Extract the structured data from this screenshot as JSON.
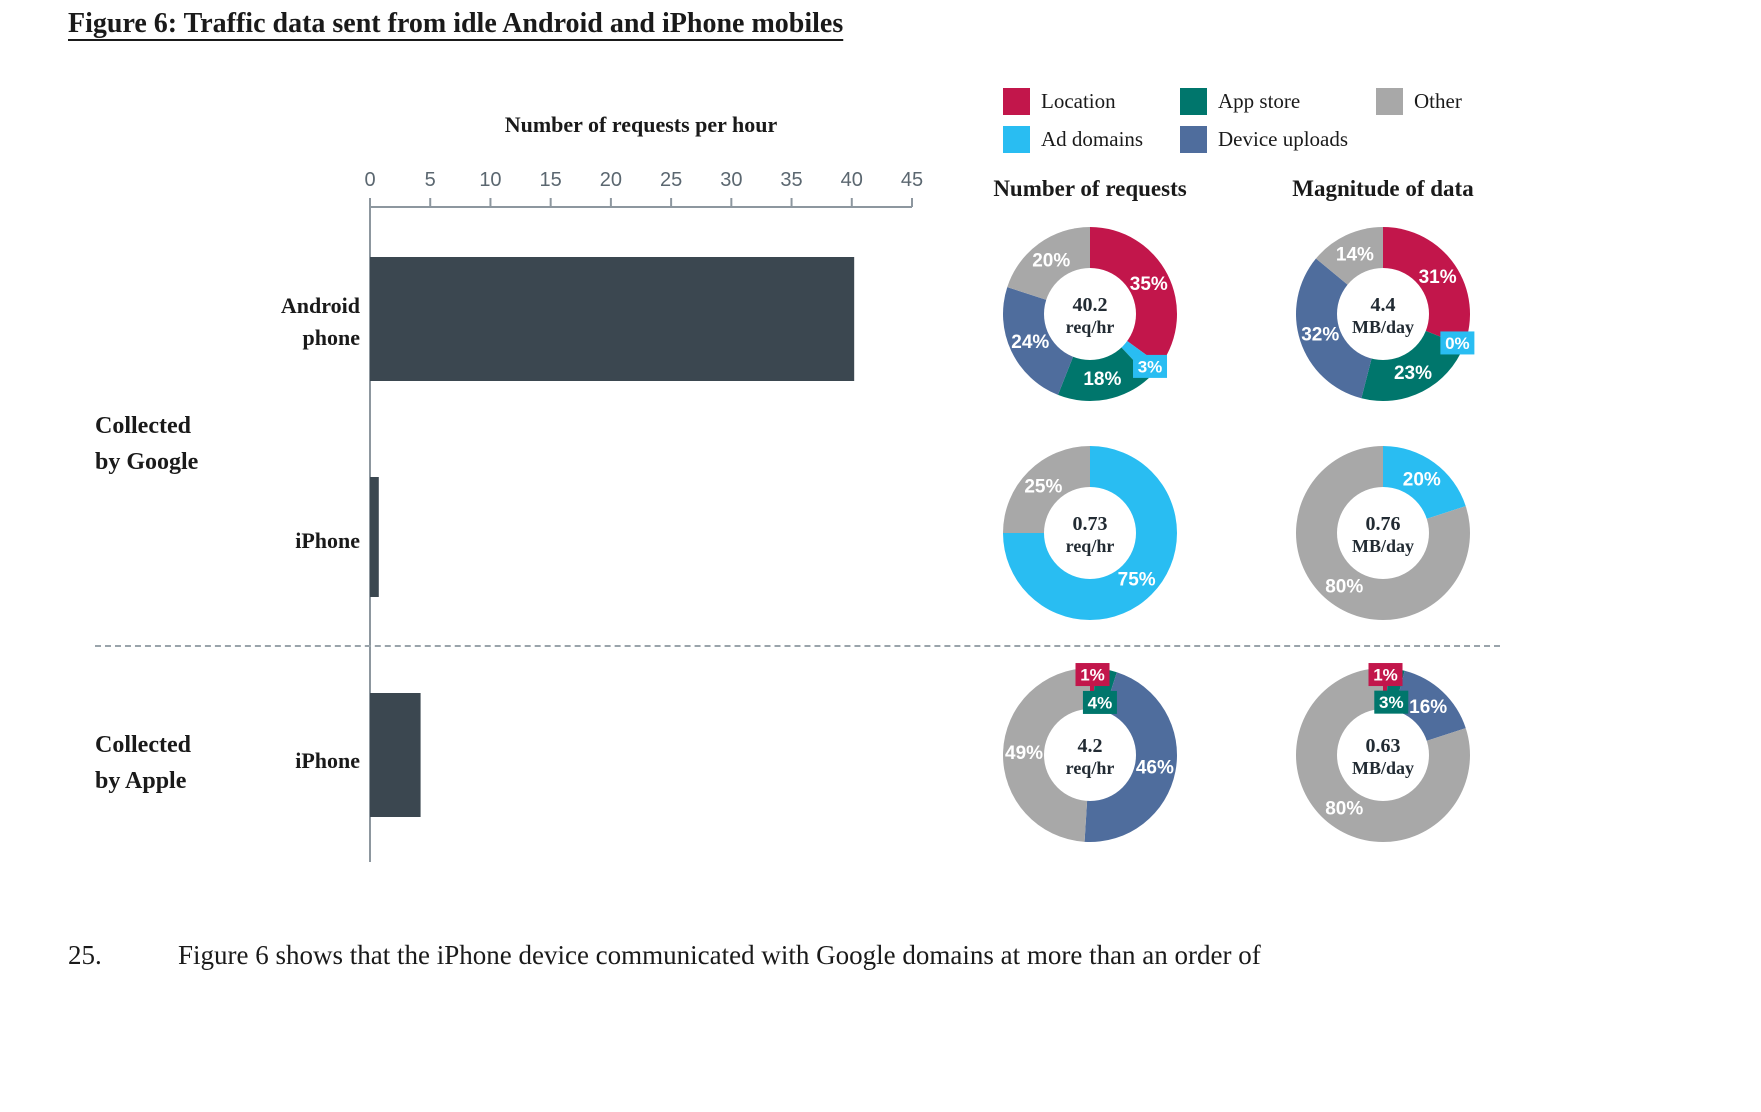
{
  "figure": {
    "title": "Figure 6: Traffic data sent from idle Android and iPhone mobiles"
  },
  "paragraph": {
    "number": "25.",
    "text": "Figure 6 shows that the iPhone device communicated with Google domains at more than an order of"
  },
  "colors": {
    "Location": "#C2164B",
    "App store": "#00766C",
    "Other": "#A8A8A8",
    "Ad domains": "#29BDF2",
    "Device uploads": "#4F6D9D",
    "bar": "#3B4750",
    "axis": "#8D979F",
    "tick_label": "#5B6770",
    "center_text": "#222B33"
  },
  "legend": {
    "items": [
      {
        "label": "Location",
        "color_key": "Location"
      },
      {
        "label": "App store",
        "color_key": "App store"
      },
      {
        "label": "Other",
        "color_key": "Other"
      },
      {
        "label": "Ad domains",
        "color_key": "Ad domains"
      },
      {
        "label": "Device uploads",
        "color_key": "Device uploads"
      }
    ]
  },
  "donut_headers": {
    "col1": "Number of requests",
    "col2": "Magnitude of data"
  },
  "bar_section": {
    "axis_title": "Number of requests per hour",
    "group_labels": {
      "google": "Collected\nby Google",
      "apple": "Collected\nby Apple"
    },
    "bar_labels": {
      "android": "Android\nphone",
      "iphone_google": "iPhone",
      "iphone_apple": "iPhone"
    }
  },
  "chart_data": [
    {
      "id": "bar-requests-per-hour",
      "type": "bar",
      "orientation": "horizontal",
      "title": "Number of requests per hour",
      "categories": [
        "Android phone (Collected by Google)",
        "iPhone (Collected by Google)",
        "iPhone (Collected by Apple)"
      ],
      "values": [
        40.2,
        0.73,
        4.2
      ],
      "xlim": [
        0,
        45
      ],
      "xticks": [
        0,
        5,
        10,
        15,
        20,
        25,
        30,
        35,
        40,
        45
      ],
      "bar_color_key": "bar",
      "grid": false
    },
    {
      "id": "donut-android-requests",
      "type": "pie",
      "donut": true,
      "row": "Android phone (Collected by Google)",
      "column": "Number of requests",
      "center_label": "40.2",
      "center_unit": "req/hr",
      "labels": [
        "Location",
        "Ad domains",
        "App store",
        "Device uploads",
        "Other"
      ],
      "values": [
        35,
        3,
        18,
        24,
        20
      ]
    },
    {
      "id": "donut-android-data",
      "type": "pie",
      "donut": true,
      "row": "Android phone (Collected by Google)",
      "column": "Magnitude of data",
      "center_label": "4.4",
      "center_unit": "MB/day",
      "labels": [
        "Location",
        "Ad domains",
        "App store",
        "Device uploads",
        "Other"
      ],
      "values": [
        31,
        0,
        23,
        32,
        14
      ]
    },
    {
      "id": "donut-iphone-google-requests",
      "type": "pie",
      "donut": true,
      "row": "iPhone (Collected by Google)",
      "column": "Number of requests",
      "center_label": "0.73",
      "center_unit": "req/hr",
      "labels": [
        "Ad domains",
        "Other"
      ],
      "values": [
        75,
        25
      ]
    },
    {
      "id": "donut-iphone-google-data",
      "type": "pie",
      "donut": true,
      "row": "iPhone (Collected by Google)",
      "column": "Magnitude of data",
      "center_label": "0.76",
      "center_unit": "MB/day",
      "labels": [
        "Ad domains",
        "Other"
      ],
      "values": [
        20,
        80
      ]
    },
    {
      "id": "donut-iphone-apple-requests",
      "type": "pie",
      "donut": true,
      "row": "iPhone (Collected by Apple)",
      "column": "Number of requests",
      "center_label": "4.2",
      "center_unit": "req/hr",
      "labels": [
        "Location",
        "App store",
        "Device uploads",
        "Other"
      ],
      "values": [
        1,
        4,
        46,
        49
      ]
    },
    {
      "id": "donut-iphone-apple-data",
      "type": "pie",
      "donut": true,
      "row": "iPhone (Collected by Apple)",
      "column": "Magnitude of data",
      "center_label": "0.63",
      "center_unit": "MB/day",
      "labels": [
        "Location",
        "App store",
        "Device uploads",
        "Other"
      ],
      "values": [
        1,
        3,
        16,
        80
      ]
    }
  ]
}
